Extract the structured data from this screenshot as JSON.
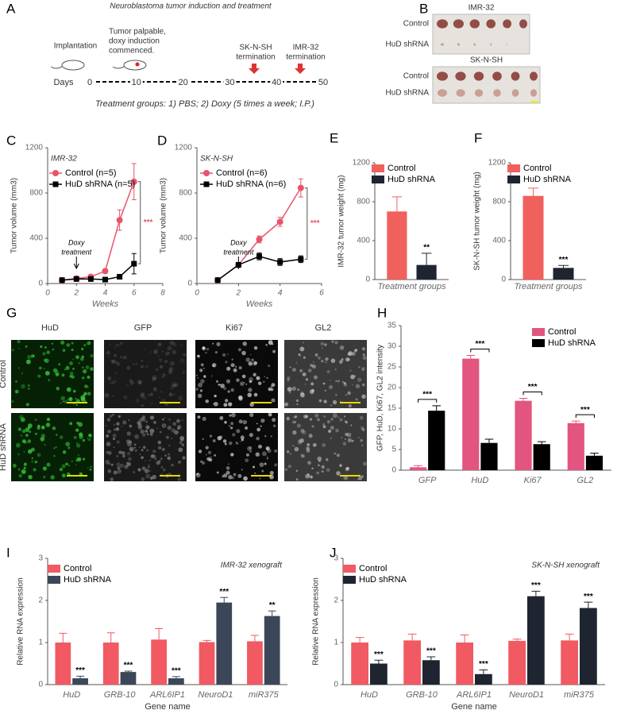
{
  "timeline": {
    "panel": "A",
    "title": "Neuroblastoma tumor induction and treatment",
    "axis_label": "Days",
    "ticks": [
      0,
      10,
      20,
      30,
      40,
      50
    ],
    "events": [
      [
        "Implantation"
      ],
      [
        "Tumor palpable,",
        "doxy induction",
        "commenced."
      ],
      [
        "SK-N-SH",
        "termination"
      ],
      [
        "IMR-32",
        "termination"
      ]
    ],
    "footer": "Treatment groups: 1) PBS; 2) Doxy (5 times a week; I.P.)"
  },
  "photos": {
    "panel": "B",
    "groups": [
      {
        "name": "IMR-32",
        "rows": [
          "Control",
          "HuD shRNA"
        ]
      },
      {
        "name": "SK-N-SH",
        "rows": [
          "Control",
          "HuD shRNA"
        ]
      }
    ]
  },
  "micrographs": {
    "panel": "G",
    "columns": [
      "HuD",
      "GFP",
      "Ki67",
      "GL2"
    ],
    "rows": [
      "Control",
      "HuD shRNA"
    ]
  },
  "chart_data": [
    {
      "panel": "C",
      "type": "line",
      "subtitle": "IMR-32",
      "x": [
        1,
        2,
        3,
        4,
        5,
        6
      ],
      "xlim": [
        0,
        8
      ],
      "xticks": [
        0,
        2,
        4,
        6,
        8
      ],
      "xlabel": "Weeks",
      "ylabel": "Tumor volume (mm3)",
      "ylim": [
        0,
        1200
      ],
      "yticks": [
        0,
        400,
        800,
        1200
      ],
      "legend": "upper left",
      "series": [
        {
          "name": "Control (n=5)",
          "color": "#e8546c",
          "marker": "circle",
          "values": [
            30,
            45,
            60,
            110,
            560,
            900
          ],
          "errors": [
            5,
            8,
            10,
            20,
            90,
            160
          ]
        },
        {
          "name": "HuD shRNA (n=5)",
          "color": "#000000",
          "marker": "square",
          "values": [
            30,
            40,
            40,
            35,
            60,
            175
          ],
          "errors": [
            5,
            5,
            5,
            5,
            15,
            90
          ]
        }
      ],
      "annotation": [
        "Doxy",
        "treatment"
      ],
      "significance": "***"
    },
    {
      "panel": "D",
      "type": "line",
      "subtitle": "SK-N-SH",
      "x": [
        1,
        2,
        3,
        4,
        5
      ],
      "xlim": [
        0,
        6
      ],
      "xticks": [
        0,
        2,
        4,
        6
      ],
      "xlabel": "Weeks",
      "ylabel": "Tumor volume (mm3)",
      "ylim": [
        0,
        1200
      ],
      "yticks": [
        0,
        400,
        800,
        1200
      ],
      "legend": "upper left",
      "series": [
        {
          "name": "Control (n=6)",
          "color": "#e8546c",
          "marker": "circle",
          "values": [
            30,
            165,
            390,
            545,
            845
          ],
          "errors": [
            5,
            15,
            30,
            40,
            80
          ]
        },
        {
          "name": "HuD shRNA (n=6)",
          "color": "#000000",
          "marker": "square",
          "values": [
            30,
            165,
            240,
            190,
            215
          ],
          "errors": [
            5,
            15,
            30,
            30,
            30
          ]
        }
      ],
      "annotation": [
        "Doxy",
        "treatment"
      ],
      "significance": "***"
    },
    {
      "panel": "E",
      "type": "bar",
      "categories": [
        null
      ],
      "xlabel": "Treatment groups",
      "ylabel": "IMR-32 tumor weight (mg)",
      "ylim": [
        0,
        1200
      ],
      "yticks": [
        0,
        400,
        800,
        1200
      ],
      "legend": "upper left",
      "series": [
        {
          "name": "Control",
          "color": "#f0605d",
          "values": [
            700
          ],
          "errors": [
            150
          ]
        },
        {
          "name": "HuD shRNA",
          "color": "#1e2530",
          "values": [
            150
          ],
          "errors": [
            120
          ]
        }
      ],
      "significance": [
        "**"
      ]
    },
    {
      "panel": "F",
      "type": "bar",
      "categories": [
        null
      ],
      "xlabel": "Treatment groups",
      "ylabel": "SK-N-SH tumor weight (mg)",
      "ylim": [
        0,
        1200
      ],
      "yticks": [
        0,
        400,
        800,
        1200
      ],
      "legend": "upper left",
      "series": [
        {
          "name": "Control",
          "color": "#f0605d",
          "values": [
            860
          ],
          "errors": [
            80
          ]
        },
        {
          "name": "HuD shRNA",
          "color": "#1e2530",
          "values": [
            120
          ],
          "errors": [
            25
          ]
        }
      ],
      "significance": [
        "***"
      ]
    },
    {
      "panel": "H",
      "type": "bar",
      "categories": [
        "GFP",
        "HuD",
        "Ki67",
        "GL2"
      ],
      "ylabel": "GFP, HuD, Ki67, GL2 intensity",
      "ylim": [
        0,
        35
      ],
      "yticks": [
        0,
        5,
        10,
        15,
        20,
        25,
        30,
        35
      ],
      "legend": "upper right",
      "series": [
        {
          "name": "Control",
          "color": "#e2557e",
          "values": [
            0.7,
            27,
            16.8,
            11.4
          ],
          "errors": [
            0.4,
            0.8,
            0.6,
            0.5
          ]
        },
        {
          "name": "HuD shRNA",
          "color": "#000000",
          "values": [
            14.4,
            6.6,
            6.3,
            3.5
          ],
          "errors": [
            1.2,
            0.9,
            0.6,
            0.6
          ]
        }
      ],
      "significance": [
        "***",
        "***",
        "***",
        "***"
      ]
    },
    {
      "panel": "I",
      "type": "bar",
      "subtitle": "IMR-32 xenograft",
      "categories": [
        "HuD",
        "GRB-10",
        "ARL6IP1",
        "NeuroD1",
        "miR375"
      ],
      "xlabel": "Gene name",
      "ylabel": "Relative RNA expression",
      "ylim": [
        0,
        3
      ],
      "yticks": [
        0,
        1,
        2,
        3
      ],
      "legend": "upper left",
      "series": [
        {
          "name": "Control",
          "color": "#f15a62",
          "values": [
            1.0,
            1.0,
            1.07,
            1.01,
            1.03
          ],
          "errors": [
            0.22,
            0.23,
            0.26,
            0.04,
            0.14
          ]
        },
        {
          "name": "HuD shRNA",
          "color": "#3b4758",
          "values": [
            0.15,
            0.3,
            0.15,
            1.95,
            1.63
          ],
          "errors": [
            0.05,
            0.02,
            0.04,
            0.12,
            0.12
          ]
        }
      ],
      "significance": [
        "***",
        "***",
        "***",
        "***",
        "**"
      ]
    },
    {
      "panel": "J",
      "type": "bar",
      "subtitle": "SK-N-SH xenograft",
      "categories": [
        "HuD",
        "GRB-10",
        "ARL6IP1",
        "NeuroD1",
        "miR375"
      ],
      "xlabel": "Gene name",
      "ylabel": "Relative RNA expression",
      "ylim": [
        0,
        3
      ],
      "yticks": [
        0,
        1,
        2,
        3
      ],
      "legend": "upper left",
      "series": [
        {
          "name": "Control",
          "color": "#f15a62",
          "values": [
            1.0,
            1.05,
            1.0,
            1.04,
            1.05
          ],
          "errors": [
            0.12,
            0.15,
            0.18,
            0.04,
            0.15
          ]
        },
        {
          "name": "HuD shRNA",
          "color": "#1e2530",
          "values": [
            0.5,
            0.58,
            0.25,
            2.1,
            1.82
          ],
          "errors": [
            0.08,
            0.08,
            0.1,
            0.12,
            0.14
          ]
        }
      ],
      "significance": [
        "***",
        "***",
        "***",
        "***",
        "***"
      ]
    }
  ]
}
